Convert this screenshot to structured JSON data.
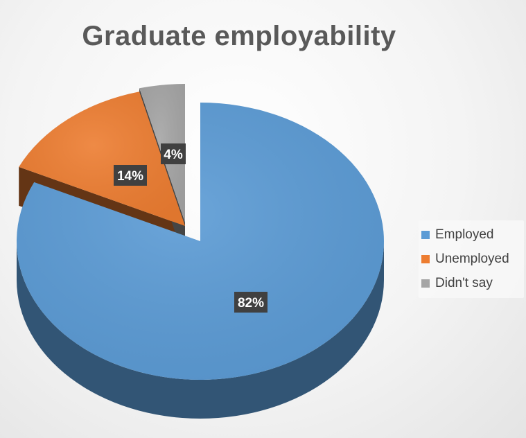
{
  "chart_data": {
    "type": "pie",
    "title": "Graduate employability",
    "categories": [
      "Employed",
      "Unemployed",
      "Didn't say"
    ],
    "values": [
      82,
      14,
      4
    ],
    "data_labels": [
      "82%",
      "14%",
      "4%"
    ],
    "colors": [
      "#5b9bd5",
      "#ed7d31",
      "#a5a5a5"
    ],
    "exploded": [
      "Unemployed",
      "Didn't say"
    ],
    "style": "3d",
    "legend": "right"
  }
}
